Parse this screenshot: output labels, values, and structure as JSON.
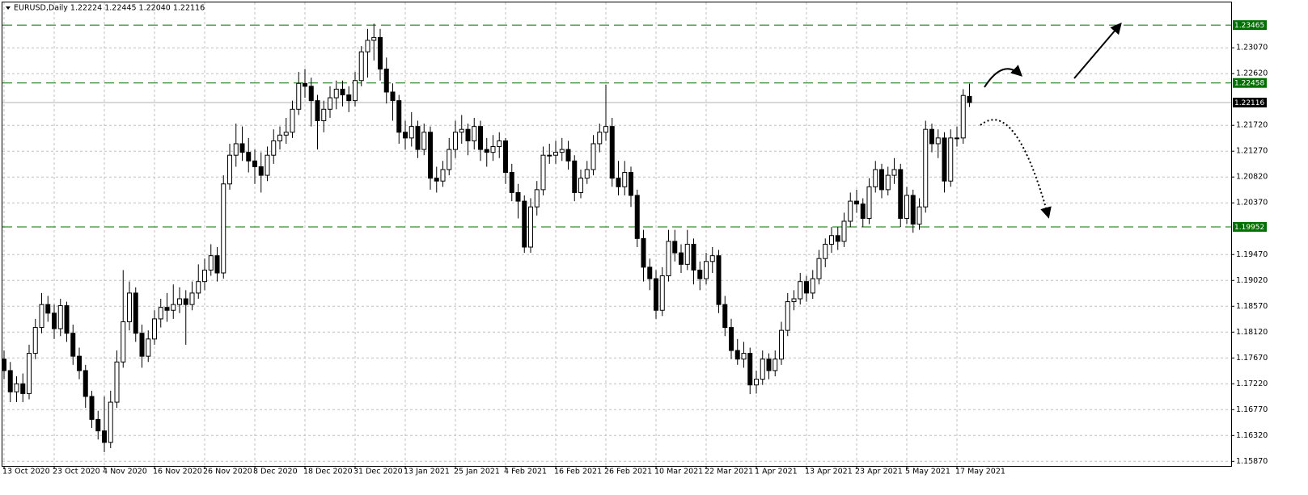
{
  "chart_data": {
    "type": "candlestick",
    "header": "EURUSD,Daily  1.22224 1.22445 1.22040 1.22116",
    "categories": [
      "13 Oct 2020",
      null,
      null,
      null,
      null,
      null,
      null,
      null,
      "23 Oct 2020",
      null,
      null,
      null,
      null,
      null,
      null,
      null,
      "4 Nov 2020",
      null,
      null,
      null,
      null,
      null,
      null,
      null,
      "16 Nov 2020",
      null,
      null,
      null,
      null,
      null,
      null,
      null,
      "26 Nov 2020",
      null,
      null,
      null,
      null,
      null,
      null,
      null,
      "8 Dec 2020",
      null,
      null,
      null,
      null,
      null,
      null,
      null,
      "18 Dec 2020",
      null,
      null,
      null,
      null,
      null,
      null,
      null,
      "31 Dec 2020",
      null,
      null,
      null,
      null,
      null,
      null,
      null,
      "13 Jan 2021",
      null,
      null,
      null,
      null,
      null,
      null,
      null,
      "25 Jan 2021",
      null,
      null,
      null,
      null,
      null,
      null,
      null,
      "4 Feb 2021",
      null,
      null,
      null,
      null,
      null,
      null,
      null,
      "16 Feb 2021",
      null,
      null,
      null,
      null,
      null,
      null,
      null,
      "26 Feb 2021",
      null,
      null,
      null,
      null,
      null,
      null,
      null,
      "10 Mar 2021",
      null,
      null,
      null,
      null,
      null,
      null,
      null,
      "22 Mar 2021",
      null,
      null,
      null,
      null,
      null,
      null,
      null,
      "1 Apr 2021",
      null,
      null,
      null,
      null,
      null,
      null,
      null,
      "13 Apr 2021",
      null,
      null,
      null,
      null,
      null,
      null,
      null,
      "23 Apr 2021",
      null,
      null,
      null,
      null,
      null,
      null,
      null,
      "5 May 2021",
      null,
      null,
      null,
      null,
      null,
      null,
      null,
      "17 May 2021",
      null,
      null
    ],
    "candles": [
      [
        1.1765,
        1.178,
        1.173,
        1.1745
      ],
      [
        1.1745,
        1.176,
        1.169,
        1.1708
      ],
      [
        1.1708,
        1.1735,
        1.169,
        1.1722
      ],
      [
        1.1722,
        1.174,
        1.169,
        1.1705
      ],
      [
        1.1705,
        1.179,
        1.1695,
        1.1775
      ],
      [
        1.1775,
        1.1835,
        1.1765,
        1.182
      ],
      [
        1.182,
        1.188,
        1.181,
        1.186
      ],
      [
        1.186,
        1.1875,
        1.183,
        1.1845
      ],
      [
        1.1845,
        1.186,
        1.18,
        1.1818
      ],
      [
        1.1818,
        1.187,
        1.1805,
        1.1858
      ],
      [
        1.1858,
        1.1865,
        1.1795,
        1.181
      ],
      [
        1.181,
        1.1825,
        1.1755,
        1.177
      ],
      [
        1.177,
        1.1785,
        1.173,
        1.1745
      ],
      [
        1.1745,
        1.1755,
        1.168,
        1.17
      ],
      [
        1.17,
        1.171,
        1.1645,
        1.166
      ],
      [
        1.166,
        1.1675,
        1.1625,
        1.164
      ],
      [
        1.164,
        1.17,
        1.1603,
        1.162
      ],
      [
        1.162,
        1.171,
        1.161,
        1.169
      ],
      [
        1.169,
        1.178,
        1.168,
        1.176
      ],
      [
        1.176,
        1.192,
        1.175,
        1.183
      ],
      [
        1.183,
        1.19,
        1.1815,
        1.188
      ],
      [
        1.188,
        1.189,
        1.1795,
        1.181
      ],
      [
        1.181,
        1.1825,
        1.175,
        1.177
      ],
      [
        1.177,
        1.1815,
        1.176,
        1.18
      ],
      [
        1.18,
        1.185,
        1.179,
        1.1835
      ],
      [
        1.1835,
        1.187,
        1.182,
        1.1855
      ],
      [
        1.1855,
        1.188,
        1.183,
        1.185
      ],
      [
        1.185,
        1.1895,
        1.1835,
        1.186
      ],
      [
        1.186,
        1.189,
        1.1845,
        1.187
      ],
      [
        1.187,
        1.1885,
        1.179,
        1.186
      ],
      [
        1.186,
        1.19,
        1.185,
        1.188
      ],
      [
        1.188,
        1.193,
        1.187,
        1.19
      ],
      [
        1.19,
        1.194,
        1.1885,
        1.192
      ],
      [
        1.192,
        1.1965,
        1.191,
        1.1945
      ],
      [
        1.1945,
        1.196,
        1.19,
        1.1915
      ],
      [
        1.1915,
        1.2085,
        1.1905,
        1.207
      ],
      [
        1.207,
        1.214,
        1.206,
        1.212
      ],
      [
        1.212,
        1.2175,
        1.21,
        1.214
      ],
      [
        1.214,
        1.217,
        1.211,
        1.2125
      ],
      [
        1.2125,
        1.215,
        1.209,
        1.211
      ],
      [
        1.211,
        1.213,
        1.207,
        1.21
      ],
      [
        1.21,
        1.2125,
        1.2055,
        1.2085
      ],
      [
        1.2085,
        1.2135,
        1.2075,
        1.212
      ],
      [
        1.212,
        1.2165,
        1.2105,
        1.2145
      ],
      [
        1.2145,
        1.217,
        1.213,
        1.2155
      ],
      [
        1.2155,
        1.2185,
        1.214,
        1.216
      ],
      [
        1.216,
        1.2215,
        1.215,
        1.22
      ],
      [
        1.22,
        1.2265,
        1.219,
        1.2245
      ],
      [
        1.2245,
        1.227,
        1.222,
        1.224
      ],
      [
        1.224,
        1.2255,
        1.217,
        1.2215
      ],
      [
        1.2215,
        1.2225,
        1.213,
        1.218
      ],
      [
        1.218,
        1.2215,
        1.216,
        1.22
      ],
      [
        1.22,
        1.224,
        1.2185,
        1.222
      ],
      [
        1.222,
        1.225,
        1.22,
        1.2235
      ],
      [
        1.2235,
        1.225,
        1.2205,
        1.2225
      ],
      [
        1.2225,
        1.224,
        1.2195,
        1.2215
      ],
      [
        1.2215,
        1.2265,
        1.2205,
        1.225
      ],
      [
        1.225,
        1.231,
        1.224,
        1.23
      ],
      [
        1.23,
        1.234,
        1.2255,
        1.232
      ],
      [
        1.232,
        1.2349,
        1.2285,
        1.2325
      ],
      [
        1.2325,
        1.234,
        1.225,
        1.227
      ],
      [
        1.227,
        1.229,
        1.221,
        1.223
      ],
      [
        1.223,
        1.2245,
        1.218,
        1.2215
      ],
      [
        1.2215,
        1.2225,
        1.214,
        1.216
      ],
      [
        1.216,
        1.218,
        1.213,
        1.215
      ],
      [
        1.215,
        1.2195,
        1.2135,
        1.217
      ],
      [
        1.217,
        1.218,
        1.2115,
        1.213
      ],
      [
        1.213,
        1.2175,
        1.212,
        1.216
      ],
      [
        1.216,
        1.217,
        1.206,
        1.208
      ],
      [
        1.208,
        1.21,
        1.2055,
        1.2075
      ],
      [
        1.2075,
        1.211,
        1.2065,
        1.2095
      ],
      [
        1.2095,
        1.215,
        1.2085,
        1.213
      ],
      [
        1.213,
        1.218,
        1.2115,
        1.216
      ],
      [
        1.216,
        1.219,
        1.214,
        1.2165
      ],
      [
        1.2165,
        1.2175,
        1.212,
        1.2145
      ],
      [
        1.2145,
        1.2185,
        1.213,
        1.217
      ],
      [
        1.217,
        1.218,
        1.211,
        1.213
      ],
      [
        1.213,
        1.215,
        1.21,
        1.2125
      ],
      [
        1.2125,
        1.2155,
        1.211,
        1.2135
      ],
      [
        1.2135,
        1.216,
        1.2115,
        1.2145
      ],
      [
        1.2145,
        1.215,
        1.207,
        1.209
      ],
      [
        1.209,
        1.2105,
        1.204,
        1.2055
      ],
      [
        1.2055,
        1.207,
        1.201,
        1.204
      ],
      [
        1.204,
        1.205,
        1.195,
        1.196
      ],
      [
        1.196,
        1.2045,
        1.195,
        1.203
      ],
      [
        1.203,
        1.2075,
        1.2015,
        1.206
      ],
      [
        1.206,
        1.2135,
        1.205,
        1.212
      ],
      [
        1.212,
        1.214,
        1.2105,
        1.212
      ],
      [
        1.212,
        1.2145,
        1.2105,
        1.2125
      ],
      [
        1.2125,
        1.215,
        1.211,
        1.213
      ],
      [
        1.213,
        1.2145,
        1.2095,
        1.211
      ],
      [
        1.211,
        1.212,
        1.204,
        1.2055
      ],
      [
        1.2055,
        1.2095,
        1.2045,
        1.208
      ],
      [
        1.208,
        1.211,
        1.207,
        1.2095
      ],
      [
        1.2095,
        1.2155,
        1.2085,
        1.214
      ],
      [
        1.214,
        1.2175,
        1.2125,
        1.216
      ],
      [
        1.216,
        1.2243,
        1.2145,
        1.217
      ],
      [
        1.217,
        1.2185,
        1.2065,
        1.208
      ],
      [
        1.208,
        1.211,
        1.205,
        1.2065
      ],
      [
        1.2065,
        1.211,
        1.205,
        1.209
      ],
      [
        1.209,
        1.21,
        1.203,
        1.205
      ],
      [
        1.205,
        1.206,
        1.196,
        1.1975
      ],
      [
        1.1975,
        1.199,
        1.19,
        1.1925
      ],
      [
        1.1925,
        1.194,
        1.1885,
        1.1905
      ],
      [
        1.1905,
        1.192,
        1.1835,
        1.185
      ],
      [
        1.185,
        1.1925,
        1.184,
        1.191
      ],
      [
        1.191,
        1.199,
        1.19,
        1.197
      ],
      [
        1.197,
        1.199,
        1.1935,
        1.195
      ],
      [
        1.195,
        1.1965,
        1.1915,
        1.193
      ],
      [
        1.193,
        1.199,
        1.192,
        1.1965
      ],
      [
        1.1965,
        1.1975,
        1.1895,
        1.192
      ],
      [
        1.192,
        1.1935,
        1.1885,
        1.1905
      ],
      [
        1.1905,
        1.195,
        1.1895,
        1.1935
      ],
      [
        1.1935,
        1.196,
        1.1915,
        1.1945
      ],
      [
        1.1945,
        1.1955,
        1.1845,
        1.186
      ],
      [
        1.186,
        1.1875,
        1.1805,
        1.182
      ],
      [
        1.182,
        1.1835,
        1.1765,
        1.178
      ],
      [
        1.178,
        1.18,
        1.1755,
        1.1765
      ],
      [
        1.1765,
        1.1795,
        1.175,
        1.1775
      ],
      [
        1.1775,
        1.1785,
        1.1704,
        1.172
      ],
      [
        1.172,
        1.1745,
        1.1705,
        1.173
      ],
      [
        1.173,
        1.178,
        1.172,
        1.1765
      ],
      [
        1.1765,
        1.1775,
        1.173,
        1.1745
      ],
      [
        1.1745,
        1.178,
        1.1735,
        1.1765
      ],
      [
        1.1765,
        1.183,
        1.1755,
        1.1815
      ],
      [
        1.1815,
        1.188,
        1.1805,
        1.1865
      ],
      [
        1.1865,
        1.1885,
        1.185,
        1.187
      ],
      [
        1.187,
        1.1915,
        1.186,
        1.19
      ],
      [
        1.19,
        1.191,
        1.1865,
        1.188
      ],
      [
        1.188,
        1.192,
        1.187,
        1.1905
      ],
      [
        1.1905,
        1.1955,
        1.1895,
        1.194
      ],
      [
        1.194,
        1.1975,
        1.1925,
        1.1965
      ],
      [
        1.1965,
        1.1995,
        1.195,
        1.198
      ],
      [
        1.198,
        1.1995,
        1.1955,
        1.197
      ],
      [
        1.197,
        1.202,
        1.196,
        1.2005
      ],
      [
        1.2005,
        1.2055,
        1.1995,
        1.204
      ],
      [
        1.204,
        1.206,
        1.202,
        1.2035
      ],
      [
        1.2035,
        1.2045,
        1.1995,
        1.201
      ],
      [
        1.201,
        1.208,
        1.2,
        1.2065
      ],
      [
        1.2065,
        1.211,
        1.2055,
        1.2095
      ],
      [
        1.2095,
        1.2105,
        1.2045,
        1.206
      ],
      [
        1.206,
        1.21,
        1.205,
        1.2085
      ],
      [
        1.2085,
        1.2115,
        1.207,
        1.2095
      ],
      [
        1.2095,
        1.2105,
        1.1995,
        1.201
      ],
      [
        1.201,
        1.2065,
        1.2,
        1.205
      ],
      [
        1.205,
        1.206,
        1.1985,
        1.2
      ],
      [
        1.2,
        1.2045,
        1.199,
        1.203
      ],
      [
        1.203,
        1.218,
        1.202,
        1.2165
      ],
      [
        1.2165,
        1.2175,
        1.2125,
        1.214
      ],
      [
        1.214,
        1.2165,
        1.2115,
        1.215
      ],
      [
        1.215,
        1.216,
        1.2055,
        1.2075
      ],
      [
        1.2075,
        1.2165,
        1.2065,
        1.215
      ],
      [
        1.215,
        1.217,
        1.2135,
        1.215
      ],
      [
        1.215,
        1.2235,
        1.214,
        1.2224
      ],
      [
        1.22224,
        1.22445,
        1.2204,
        1.22116
      ]
    ],
    "ylim": [
      1.1579,
      1.2386
    ],
    "yticks": [
      {
        "value": 1.1587,
        "label": "1.15870"
      },
      {
        "value": 1.1632,
        "label": "1.16320"
      },
      {
        "value": 1.1677,
        "label": "1.16770"
      },
      {
        "value": 1.1722,
        "label": "1.17220"
      },
      {
        "value": 1.1767,
        "label": "1.17670"
      },
      {
        "value": 1.1812,
        "label": "1.18120"
      },
      {
        "value": 1.1857,
        "label": "1.18570"
      },
      {
        "value": 1.1902,
        "label": "1.19020"
      },
      {
        "value": 1.1947,
        "label": "1.19470"
      },
      {
        "value": 1.2037,
        "label": "1.20370"
      },
      {
        "value": 1.2082,
        "label": "1.20820"
      },
      {
        "value": 1.2127,
        "label": "1.21270"
      },
      {
        "value": 1.2172,
        "label": "1.21720"
      },
      {
        "value": 1.2262,
        "label": "1.22620"
      },
      {
        "value": 1.2307,
        "label": "1.23070"
      }
    ],
    "levels": [
      1.23465,
      1.22458,
      1.19952
    ],
    "level_color": "#007000",
    "grid": true,
    "up_color": "#ffffff",
    "down_color": "#000000"
  }
}
